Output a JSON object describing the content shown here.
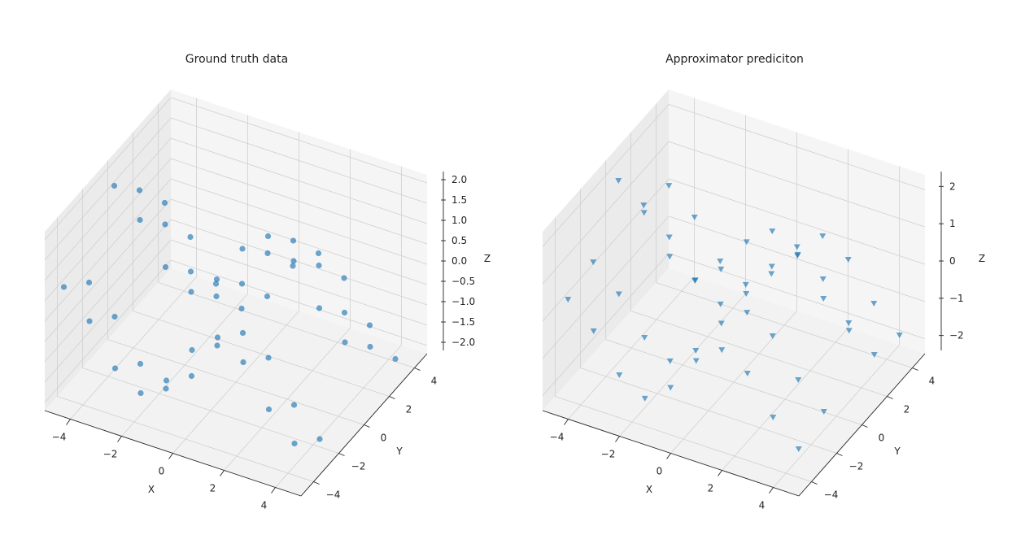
{
  "chart_data": [
    {
      "type": "scatter3d",
      "title": "Ground truth data",
      "xlabel": "X",
      "ylabel": "Y",
      "zlabel": "Z",
      "xlim": [
        -5,
        5
      ],
      "ylim": [
        -5,
        5
      ],
      "zlim": [
        -2.2,
        2.2
      ],
      "xticks": [
        "−4",
        "−2",
        "0",
        "2",
        "4"
      ],
      "yticks": [
        "−4",
        "−2",
        "0",
        "2",
        "4"
      ],
      "zticks": [
        "−2.0",
        "−1.5",
        "−1.0",
        "−0.5",
        "0.0",
        "0.5",
        "1.0",
        "1.5",
        "2.0"
      ],
      "xtick_values": [
        -4,
        -2,
        0,
        2,
        4
      ],
      "ytick_values": [
        -4,
        -2,
        0,
        2,
        4
      ],
      "ztick_values": [
        -2,
        -1.5,
        -1,
        -0.5,
        0,
        0.5,
        1,
        1.5,
        2
      ],
      "marker": "circle",
      "color": "#1f77b4",
      "grid": true,
      "points": [
        [
          -4.5,
          -4.5,
          0.77
        ],
        [
          -4.5,
          -2.5,
          0.18
        ],
        [
          -4.5,
          -0.5,
          1.86
        ],
        [
          -4.5,
          1.5,
          1.05
        ],
        [
          -4.5,
          3.5,
          0.04
        ],
        [
          -3.5,
          -4.5,
          0.14
        ],
        [
          -3.5,
          -2.5,
          -0.45
        ],
        [
          -3.5,
          -0.5,
          1.23
        ],
        [
          -3.5,
          1.5,
          0.42
        ],
        [
          -3.5,
          3.5,
          -0.59
        ],
        [
          -2.5,
          -4.5,
          -0.81
        ],
        [
          -2.5,
          -2.5,
          -1.4
        ],
        [
          -2.5,
          -0.5,
          0.28
        ],
        [
          -2.5,
          1.5,
          -0.53
        ],
        [
          -2.5,
          3.5,
          -1.53
        ],
        [
          -1.5,
          -4.5,
          -1.21
        ],
        [
          -1.5,
          -2.5,
          -1.8
        ],
        [
          -1.5,
          -0.5,
          -0.12
        ],
        [
          -1.5,
          1.5,
          -0.93
        ],
        [
          -1.5,
          3.5,
          -1.93
        ],
        [
          -0.5,
          -4.5,
          -0.69
        ],
        [
          -0.5,
          -2.5,
          -1.28
        ],
        [
          -0.5,
          -0.5,
          0.4
        ],
        [
          -0.5,
          1.5,
          -0.41
        ],
        [
          -0.5,
          3.5,
          -1.42
        ],
        [
          0.5,
          -4.5,
          0.27
        ],
        [
          0.5,
          -2.5,
          -0.32
        ],
        [
          0.5,
          -0.5,
          1.36
        ],
        [
          0.5,
          1.5,
          0.55
        ],
        [
          0.5,
          3.5,
          -0.46
        ],
        [
          1.5,
          -4.5,
          0.79
        ],
        [
          1.5,
          -2.5,
          0.2
        ],
        [
          1.5,
          -0.5,
          1.88
        ],
        [
          1.5,
          1.5,
          1.07
        ],
        [
          1.5,
          3.5,
          0.06
        ],
        [
          2.5,
          -4.5,
          0.39
        ],
        [
          2.5,
          -2.5,
          -0.2
        ],
        [
          2.5,
          -0.5,
          1.48
        ],
        [
          2.5,
          1.5,
          0.67
        ],
        [
          2.5,
          3.5,
          -0.34
        ],
        [
          3.5,
          -4.5,
          -0.56
        ],
        [
          3.5,
          -2.5,
          -1.15
        ],
        [
          3.5,
          -0.5,
          0.53
        ],
        [
          3.5,
          1.5,
          -0.28
        ],
        [
          3.5,
          3.5,
          -1.29
        ],
        [
          4.5,
          -4.5,
          -1.19
        ],
        [
          4.5,
          -2.5,
          -1.78
        ],
        [
          4.5,
          -0.5,
          -0.1
        ],
        [
          4.5,
          1.5,
          -0.91
        ],
        [
          4.5,
          3.5,
          -1.91
        ]
      ]
    },
    {
      "type": "scatter3d",
      "title": "Approximator prediciton",
      "xlabel": "X",
      "ylabel": "Y",
      "zlabel": "Z",
      "xlim": [
        -5,
        5
      ],
      "ylim": [
        -5,
        5
      ],
      "zlim": [
        -2.4,
        2.4
      ],
      "xticks": [
        "−4",
        "−2",
        "0",
        "2",
        "4"
      ],
      "yticks": [
        "−4",
        "−2",
        "0",
        "2",
        "4"
      ],
      "zticks": [
        "−2",
        "−1",
        "0",
        "1",
        "2"
      ],
      "xtick_values": [
        -4,
        -2,
        0,
        2,
        4
      ],
      "ytick_values": [
        -4,
        -2,
        0,
        2,
        4
      ],
      "ztick_values": [
        -2,
        -1,
        0,
        1,
        2
      ],
      "marker": "triangle-down",
      "color": "#1f77b4",
      "grid": true,
      "points": [
        [
          -4.5,
          -4,
          0.32
        ],
        [
          -4.5,
          -2,
          0.56
        ],
        [
          -4.5,
          0,
          1.98
        ],
        [
          -4.5,
          2,
          0.56
        ],
        [
          -4.5,
          4,
          0.32
        ],
        [
          -3.5,
          -4,
          -0.3
        ],
        [
          -3.5,
          -2,
          -0.07
        ],
        [
          -3.5,
          0,
          1.35
        ],
        [
          -3.5,
          2,
          -0.07
        ],
        [
          -3.5,
          4,
          -0.3
        ],
        [
          -2.5,
          -4,
          -1.25
        ],
        [
          -2.5,
          -2,
          -1.01
        ],
        [
          -2.5,
          0,
          0.4
        ],
        [
          -2.5,
          2,
          -1.01
        ],
        [
          -2.5,
          4,
          -1.25
        ],
        [
          -1.5,
          -4,
          -1.65
        ],
        [
          -1.5,
          -2,
          -1.41
        ],
        [
          -1.5,
          0,
          0.0
        ],
        [
          -1.5,
          2,
          -1.41
        ],
        [
          -1.5,
          4,
          -1.65
        ],
        [
          -0.5,
          -4,
          -1.13
        ],
        [
          -0.5,
          -2,
          -0.9
        ],
        [
          -0.5,
          0,
          0.52
        ],
        [
          -0.5,
          2,
          -0.9
        ],
        [
          -0.5,
          4,
          -1.13
        ],
        [
          0.5,
          -4,
          -0.18
        ],
        [
          0.5,
          -2,
          0.06
        ],
        [
          0.5,
          0,
          1.48
        ],
        [
          0.5,
          2,
          0.06
        ],
        [
          0.5,
          4,
          -0.18
        ],
        [
          1.5,
          -4,
          0.34
        ],
        [
          1.5,
          -2,
          0.58
        ],
        [
          1.5,
          0,
          2.0
        ],
        [
          1.5,
          2,
          0.58
        ],
        [
          1.5,
          4,
          0.34
        ],
        [
          2.5,
          -4,
          -0.06
        ],
        [
          2.5,
          -2,
          0.18
        ],
        [
          2.5,
          0,
          1.6
        ],
        [
          2.5,
          2,
          0.18
        ],
        [
          2.5,
          4,
          -0.06
        ],
        [
          3.5,
          -4,
          -1.01
        ],
        [
          3.5,
          -2,
          -0.77
        ],
        [
          3.5,
          0,
          0.65
        ],
        [
          3.5,
          2,
          -0.77
        ],
        [
          3.5,
          4,
          -1.01
        ],
        [
          4.5,
          -4,
          -1.63
        ],
        [
          4.5,
          -2,
          -1.39
        ],
        [
          4.5,
          0,
          0.02
        ],
        [
          4.5,
          2,
          -1.39
        ],
        [
          4.5,
          4,
          -1.63
        ]
      ]
    }
  ]
}
